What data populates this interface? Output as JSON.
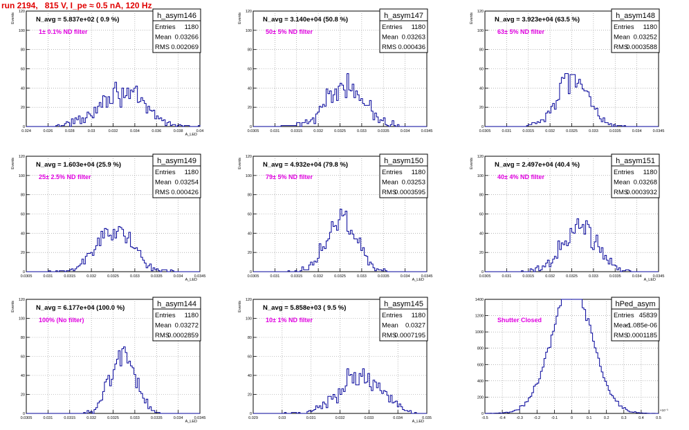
{
  "page_title": "run 2194,   815 V, I_pe ≈ 0.5 nA, 120 Hz",
  "chart_data": [
    {
      "type": "histogram",
      "name": "h_asym146",
      "nav_label": "N_avg = 5.837e+02 ( 0.9 %)",
      "filter_label": "1± 0.1% ND filter",
      "stats": {
        "Entries": "1180",
        "Mean": "0.03266",
        "RMS": "0.002069"
      },
      "ylabel": "Events",
      "xlabel": "A_LED",
      "xlim": [
        0.024,
        0.04
      ],
      "ylim": [
        0,
        120
      ],
      "xticks": [
        0.024,
        0.026,
        0.028,
        0.03,
        0.032,
        0.034,
        0.036,
        0.038,
        0.04
      ],
      "xticklabels": [
        "0.024",
        "0.026",
        "0.028",
        "0.03",
        "0.032",
        "0.034",
        "0.036",
        "0.038",
        "0.04"
      ],
      "yticks": [
        0,
        20,
        40,
        60,
        80,
        100,
        120
      ],
      "yticklabels": [
        "0",
        "20",
        "40",
        "60",
        "80",
        "100",
        "120"
      ],
      "grid": true,
      "profile": {
        "center": 0.03266,
        "rms": 0.002069,
        "nbins": 100,
        "nfill": 1180
      }
    },
    {
      "type": "histogram",
      "name": "h_asym147",
      "nav_label": "N_avg = 3.140e+04 (50.8 %)",
      "filter_label": "50± 5% ND filter",
      "stats": {
        "Entries": "1180",
        "Mean": "0.03263",
        "RMS": "0.000436"
      },
      "ylabel": "Events",
      "xlabel": "",
      "xlim": [
        0.0305,
        0.0345
      ],
      "ylim": [
        0,
        120
      ],
      "xticks": [
        0.0305,
        0.031,
        0.0315,
        0.032,
        0.0325,
        0.033,
        0.0335,
        0.034,
        0.0345
      ],
      "xticklabels": [
        "0.0305",
        "0.031",
        "0.0315",
        "0.032",
        "0.0325",
        "0.033",
        "0.0335",
        "0.034",
        "0.0345"
      ],
      "yticks": [
        0,
        20,
        40,
        60,
        80,
        100,
        120
      ],
      "yticklabels": [
        "0",
        "20",
        "40",
        "60",
        "80",
        "100",
        "120"
      ],
      "grid": true,
      "profile": {
        "center": 0.03263,
        "rms": 0.000436,
        "nbins": 100,
        "nfill": 1180
      }
    },
    {
      "type": "histogram",
      "name": "h_asym148",
      "nav_label": "N_avg = 3.923e+04 (63.5 %)",
      "filter_label": "63± 5% ND filter",
      "stats": {
        "Entries": "1180",
        "Mean": "0.03252",
        "RMS": "0.0003588"
      },
      "ylabel": "Events",
      "xlabel": "",
      "xlim": [
        0.0305,
        0.0345
      ],
      "ylim": [
        0,
        120
      ],
      "xticks": [
        0.0305,
        0.031,
        0.0315,
        0.032,
        0.0325,
        0.033,
        0.0335,
        0.034,
        0.0345
      ],
      "xticklabels": [
        "0.0305",
        "0.031",
        "0.0315",
        "0.032",
        "0.0325",
        "0.033",
        "0.0335",
        "0.034",
        "0.0345"
      ],
      "yticks": [
        0,
        20,
        40,
        60,
        80,
        100,
        120
      ],
      "yticklabels": [
        "0",
        "20",
        "40",
        "60",
        "80",
        "100",
        "120"
      ],
      "grid": true,
      "profile": {
        "center": 0.03252,
        "rms": 0.0003588,
        "nbins": 100,
        "nfill": 1180
      }
    },
    {
      "type": "histogram",
      "name": "h_asym149",
      "nav_label": "N_avg = 1.603e+04 (25.9 %)",
      "filter_label": "25± 2.5% ND filter",
      "stats": {
        "Entries": "1180",
        "Mean": "0.03254",
        "RMS": "0.000426"
      },
      "ylabel": "Events",
      "xlabel": "A_LED",
      "xlim": [
        0.0305,
        0.0345
      ],
      "ylim": [
        0,
        120
      ],
      "xticks": [
        0.0305,
        0.031,
        0.0315,
        0.032,
        0.0325,
        0.033,
        0.0335,
        0.034,
        0.0345
      ],
      "xticklabels": [
        "0.0305",
        "0.031",
        "0.0315",
        "0.032",
        "0.0325",
        "0.033",
        "0.0335",
        "0.034",
        "0.0345"
      ],
      "yticks": [
        0,
        20,
        40,
        60,
        80,
        100,
        120
      ],
      "yticklabels": [
        "0",
        "20",
        "40",
        "60",
        "80",
        "100",
        "120"
      ],
      "grid": true,
      "profile": {
        "center": 0.03254,
        "rms": 0.000426,
        "nbins": 100,
        "nfill": 1180
      }
    },
    {
      "type": "histogram",
      "name": "h_asym150",
      "nav_label": "N_avg = 4.932e+04 (79.8 %)",
      "filter_label": "79± 5% ND filter",
      "stats": {
        "Entries": "1180",
        "Mean": "0.03253",
        "RMS": "0.0003595"
      },
      "ylabel": "Events",
      "xlabel": "A_LED",
      "xlim": [
        0.0305,
        0.0345
      ],
      "ylim": [
        0,
        120
      ],
      "xticks": [
        0.0305,
        0.031,
        0.0315,
        0.032,
        0.0325,
        0.033,
        0.0335,
        0.034,
        0.0345
      ],
      "xticklabels": [
        "0.0305",
        "0.031",
        "0.0315",
        "0.032",
        "0.0325",
        "0.033",
        "0.0335",
        "0.034",
        "0.0345"
      ],
      "yticks": [
        0,
        20,
        40,
        60,
        80,
        100,
        120
      ],
      "yticklabels": [
        "0",
        "20",
        "40",
        "60",
        "80",
        "100",
        "120"
      ],
      "grid": true,
      "profile": {
        "center": 0.03253,
        "rms": 0.0003595,
        "nbins": 100,
        "nfill": 1180
      }
    },
    {
      "type": "histogram",
      "name": "h_asym151",
      "nav_label": "N_avg = 2.497e+04 (40.4 %)",
      "filter_label": "40± 4% ND filter",
      "stats": {
        "Entries": "1180",
        "Mean": "0.03268",
        "RMS": "0.0003932"
      },
      "ylabel": "Events",
      "xlabel": "A_LED",
      "xlim": [
        0.0305,
        0.0345
      ],
      "ylim": [
        0,
        120
      ],
      "xticks": [
        0.0305,
        0.031,
        0.0315,
        0.032,
        0.0325,
        0.033,
        0.0335,
        0.034,
        0.0345
      ],
      "xticklabels": [
        "0.0305",
        "0.031",
        "0.0315",
        "0.032",
        "0.0325",
        "0.033",
        "0.0335",
        "0.034",
        "0.0345"
      ],
      "yticks": [
        0,
        20,
        40,
        60,
        80,
        100,
        120
      ],
      "yticklabels": [
        "0",
        "20",
        "40",
        "60",
        "80",
        "100",
        "120"
      ],
      "grid": true,
      "profile": {
        "center": 0.03268,
        "rms": 0.0003932,
        "nbins": 100,
        "nfill": 1180
      }
    },
    {
      "type": "histogram",
      "name": "h_asym144",
      "nav_label": "N_avg = 6.177e+04 (100.0 %)",
      "filter_label": "100% (No filter)",
      "stats": {
        "Entries": "1180",
        "Mean": "0.03272",
        "RMS": "0.0002859"
      },
      "ylabel": "Events",
      "xlabel": "A_LED",
      "xlim": [
        0.0305,
        0.0345
      ],
      "ylim": [
        0,
        120
      ],
      "xticks": [
        0.0305,
        0.031,
        0.0315,
        0.032,
        0.0325,
        0.033,
        0.0335,
        0.034,
        0.0345
      ],
      "xticklabels": [
        "0.0305",
        "0.031",
        "0.0315",
        "0.032",
        "0.0325",
        "0.033",
        "0.0335",
        "0.034",
        "0.0345"
      ],
      "yticks": [
        0,
        20,
        40,
        60,
        80,
        100,
        120
      ],
      "yticklabels": [
        "0",
        "20",
        "40",
        "60",
        "80",
        "100",
        "120"
      ],
      "grid": true,
      "profile": {
        "center": 0.03272,
        "rms": 0.0002859,
        "nbins": 100,
        "nfill": 1180
      }
    },
    {
      "type": "histogram",
      "name": "h_asym145",
      "nav_label": "N_avg = 5.858e+03 ( 9.5 %)",
      "filter_label": "10± 1% ND filter",
      "stats": {
        "Entries": "1180",
        "Mean": "0.0327",
        "RMS": "0.0007195"
      },
      "ylabel": "Events",
      "xlabel": "A_LED",
      "xlim": [
        0.029,
        0.035
      ],
      "ylim": [
        0,
        120
      ],
      "xticks": [
        0.029,
        0.03,
        0.031,
        0.032,
        0.033,
        0.034,
        0.035
      ],
      "xticklabels": [
        "0.029",
        "0.03",
        "0.031",
        "0.032",
        "0.033",
        "0.034",
        "0.035"
      ],
      "yticks": [
        0,
        20,
        40,
        60,
        80,
        100,
        120
      ],
      "yticklabels": [
        "0",
        "20",
        "40",
        "60",
        "80",
        "100",
        "120"
      ],
      "grid": true,
      "profile": {
        "center": 0.0327,
        "rms": 0.0007195,
        "nbins": 100,
        "nfill": 1180
      }
    },
    {
      "type": "histogram",
      "name": "hPed_asym",
      "nav_label": "",
      "filter_label": "Shutter Closed",
      "stats": {
        "Entries": "45839",
        "Mean": "-1.085e-06",
        "RMS": "0.0001185"
      },
      "ylabel": "",
      "xlabel": "",
      "xexponent": "×10⁻³",
      "xlim": [
        -0.5,
        0.5
      ],
      "ylim": [
        0,
        1400
      ],
      "xticks": [
        -0.5,
        -0.4,
        -0.3,
        -0.2,
        -0.1,
        0,
        0.1,
        0.2,
        0.3,
        0.4,
        0.5
      ],
      "xticklabels": [
        "-0.5",
        "-0.4",
        "-0.3",
        "-0.2",
        "-0.1",
        "0",
        "0.1",
        "0.2",
        "0.3",
        "0.4",
        "0.5"
      ],
      "yticks": [
        0,
        200,
        400,
        600,
        800,
        1000,
        1200,
        1400
      ],
      "yticklabels": [
        "0",
        "200",
        "400",
        "600",
        "800",
        "1000",
        "1200",
        "1400"
      ],
      "grid": true,
      "profile": {
        "center": 0.0,
        "rms": 0.1185,
        "nbins": 100,
        "nfill": 45839
      }
    }
  ]
}
